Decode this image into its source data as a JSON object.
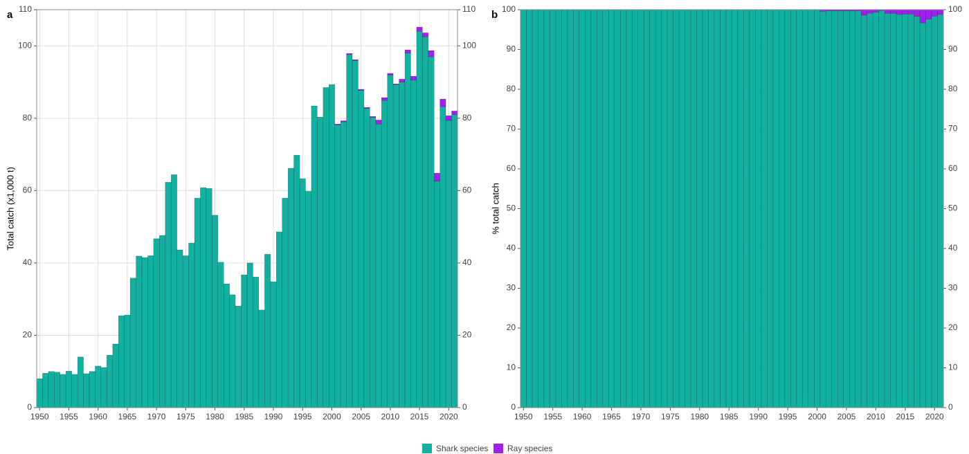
{
  "chart_data": [
    {
      "type": "bar",
      "stacked": true,
      "label": "a",
      "ylabel": "Total catch (x1,000 t)",
      "x": [
        1950,
        1951,
        1952,
        1953,
        1954,
        1955,
        1956,
        1957,
        1958,
        1959,
        1960,
        1961,
        1962,
        1963,
        1964,
        1965,
        1966,
        1967,
        1968,
        1969,
        1970,
        1971,
        1972,
        1973,
        1974,
        1975,
        1976,
        1977,
        1978,
        1979,
        1980,
        1981,
        1982,
        1983,
        1984,
        1985,
        1986,
        1987,
        1988,
        1989,
        1990,
        1991,
        1992,
        1993,
        1994,
        1995,
        1996,
        1997,
        1998,
        1999,
        2000,
        2001,
        2002,
        2003,
        2004,
        2005,
        2006,
        2007,
        2008,
        2009,
        2010,
        2011,
        2012,
        2013,
        2014,
        2015,
        2016,
        2017,
        2018,
        2019,
        2020,
        2021
      ],
      "series": [
        {
          "name": "Shark species",
          "color": "#12b0a0",
          "values": [
            8,
            9.5,
            10,
            9.8,
            9.2,
            10.1,
            9.2,
            14,
            9.4,
            10,
            11.5,
            11.1,
            14.5,
            17.6,
            25.4,
            25.6,
            35.8,
            41.9,
            41.5,
            42,
            46.7,
            47.6,
            62.3,
            64.4,
            43.6,
            42,
            45.5,
            57.9,
            60.8,
            60.6,
            53.2,
            40.2,
            34.2,
            31.2,
            28.1,
            36.7,
            40,
            36.1,
            27,
            42.4,
            34.8,
            48.6,
            57.9,
            66.2,
            69.8,
            63.3,
            59.8,
            83.4,
            80.3,
            88.5,
            89.3,
            78.1,
            79.0,
            97.6,
            95.9,
            87.7,
            82.7,
            80.2,
            78.4,
            84.9,
            91.9,
            89.3,
            90.0,
            98.0,
            90.5,
            104.0,
            102.5,
            97.0,
            62.6,
            83.2,
            79.4,
            81.0
          ]
        },
        {
          "name": "Ray species",
          "color": "#a020f0",
          "values": [
            0,
            0,
            0,
            0,
            0,
            0,
            0,
            0,
            0,
            0,
            0,
            0,
            0,
            0,
            0,
            0,
            0,
            0,
            0,
            0,
            0,
            0,
            0,
            0,
            0,
            0,
            0,
            0,
            0,
            0,
            0,
            0,
            0,
            0,
            0,
            0,
            0,
            0,
            0,
            0,
            0,
            0,
            0,
            0,
            0,
            0,
            0,
            0,
            0,
            0,
            0,
            0.3,
            0.3,
            0.3,
            0.3,
            0.3,
            0.3,
            0.3,
            1.1,
            0.8,
            0.5,
            0.2,
            0.8,
            0.9,
            1.1,
            1.2,
            1.1,
            1.7,
            2.2,
            2.1,
            1.3,
            1.0
          ]
        }
      ],
      "xlim": [
        1949.5,
        2021.5
      ],
      "xticks": [
        1950,
        1955,
        1960,
        1965,
        1970,
        1975,
        1980,
        1985,
        1990,
        1995,
        2000,
        2005,
        2010,
        2015,
        2020
      ],
      "ylim": [
        0,
        110
      ],
      "yticks": [
        0,
        20,
        40,
        60,
        80,
        100,
        110
      ],
      "y2lim": [
        0,
        110
      ],
      "y2ticks": [
        0,
        20,
        40,
        60,
        80,
        100,
        110
      ],
      "grid": true
    },
    {
      "type": "bar",
      "stacked": true,
      "label": "b",
      "ylabel": "% total catch",
      "x": [
        1950,
        1951,
        1952,
        1953,
        1954,
        1955,
        1956,
        1957,
        1958,
        1959,
        1960,
        1961,
        1962,
        1963,
        1964,
        1965,
        1966,
        1967,
        1968,
        1969,
        1970,
        1971,
        1972,
        1973,
        1974,
        1975,
        1976,
        1977,
        1978,
        1979,
        1980,
        1981,
        1982,
        1983,
        1984,
        1985,
        1986,
        1987,
        1988,
        1989,
        1990,
        1991,
        1992,
        1993,
        1994,
        1995,
        1996,
        1997,
        1998,
        1999,
        2000,
        2001,
        2002,
        2003,
        2004,
        2005,
        2006,
        2007,
        2008,
        2009,
        2010,
        2011,
        2012,
        2013,
        2014,
        2015,
        2016,
        2017,
        2018,
        2019,
        2020,
        2021
      ],
      "series": [
        {
          "name": "Shark species",
          "color": "#12b0a0",
          "values": [
            100,
            100,
            100,
            100,
            100,
            100,
            100,
            100,
            100,
            100,
            100,
            100,
            100,
            100,
            100,
            100,
            100,
            100,
            100,
            100,
            100,
            100,
            100,
            100,
            100,
            100,
            100,
            100,
            100,
            100,
            100,
            100,
            100,
            100,
            100,
            100,
            100,
            100,
            100,
            100,
            100,
            100,
            100,
            100,
            100,
            100,
            100,
            100,
            100,
            100,
            100,
            99.6,
            99.7,
            99.7,
            99.7,
            99.7,
            99.7,
            99.7,
            98.6,
            99.1,
            99.4,
            99.8,
            99.1,
            99.1,
            98.8,
            98.9,
            98.9,
            98.3,
            96.7,
            97.6,
            98.4,
            98.8
          ]
        },
        {
          "name": "Ray species",
          "color": "#a020f0",
          "values": [
            0,
            0,
            0,
            0,
            0,
            0,
            0,
            0,
            0,
            0,
            0,
            0,
            0,
            0,
            0,
            0,
            0,
            0,
            0,
            0,
            0,
            0,
            0,
            0,
            0,
            0,
            0,
            0,
            0,
            0,
            0,
            0,
            0,
            0,
            0,
            0,
            0,
            0,
            0,
            0,
            0,
            0,
            0,
            0,
            0,
            0,
            0,
            0,
            0,
            0,
            0,
            0.4,
            0.3,
            0.3,
            0.3,
            0.3,
            0.3,
            0.3,
            1.4,
            0.9,
            0.6,
            0.2,
            0.9,
            0.9,
            1.2,
            1.1,
            1.1,
            1.7,
            3.3,
            2.4,
            1.6,
            1.2
          ]
        }
      ],
      "xlim": [
        1949.5,
        2021.5
      ],
      "xticks": [
        1950,
        1955,
        1960,
        1965,
        1970,
        1975,
        1980,
        1985,
        1990,
        1995,
        2000,
        2005,
        2010,
        2015,
        2020
      ],
      "ylim": [
        0,
        100
      ],
      "yticks": [
        0,
        10,
        20,
        30,
        40,
        50,
        60,
        70,
        80,
        90,
        100
      ],
      "y2lim": [
        0,
        100
      ],
      "y2ticks": [
        0,
        10,
        20,
        30,
        40,
        50,
        60,
        70,
        80,
        90,
        100
      ],
      "grid": true
    }
  ]
}
